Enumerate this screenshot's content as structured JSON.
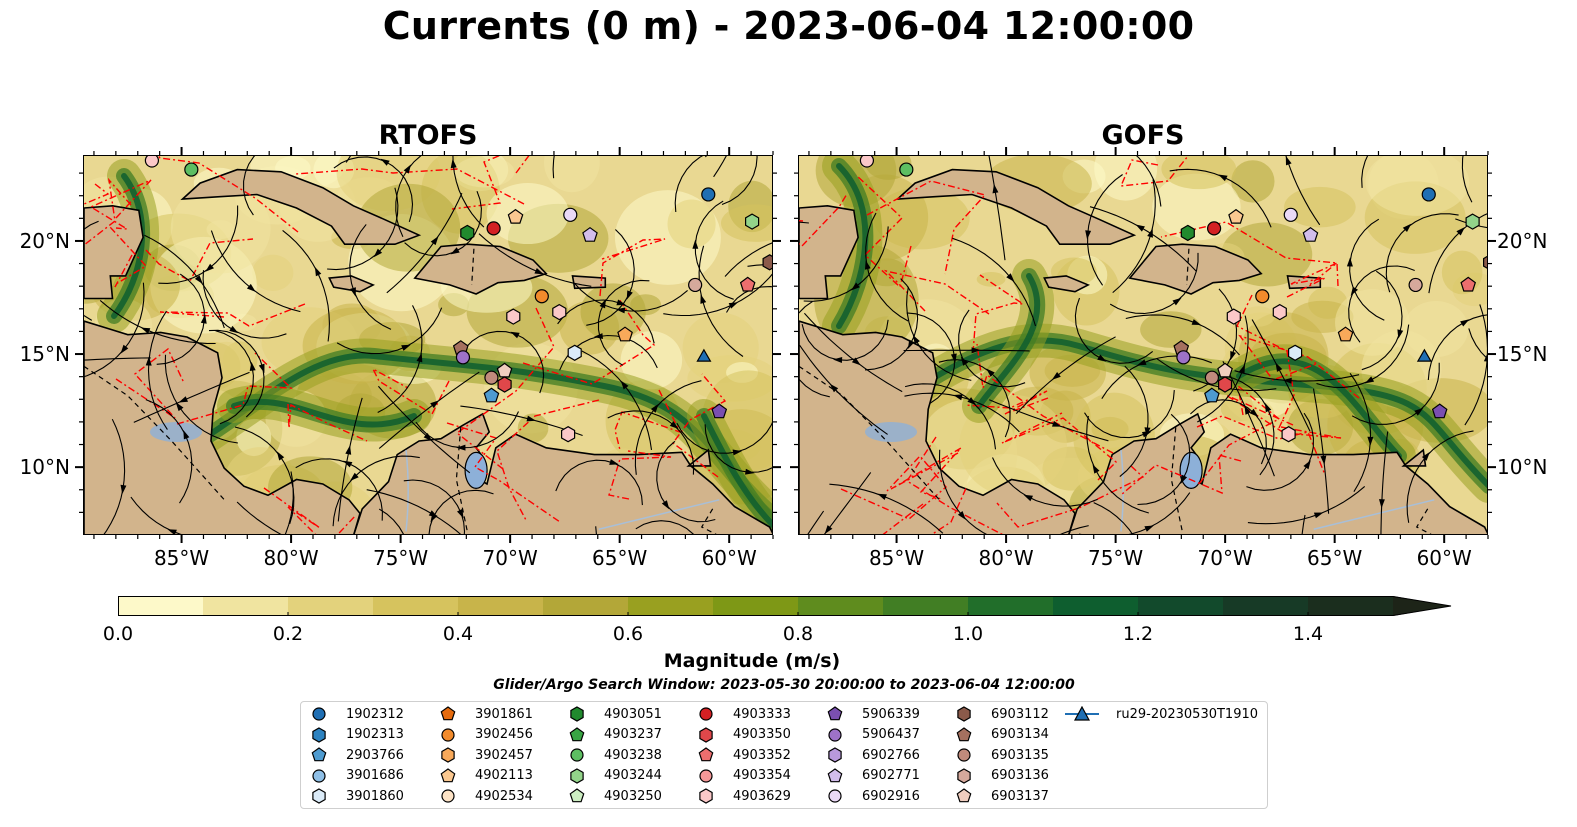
{
  "title": "Currents (0 m) - 2023-06-04 12:00:00",
  "panels": [
    {
      "title": "RTOFS"
    },
    {
      "title": "GOFS"
    }
  ],
  "x_ticks": [
    "85°W",
    "80°W",
    "75°W",
    "70°W",
    "65°W",
    "60°W"
  ],
  "y_ticks": [
    "20°N",
    "15°N",
    "10°N"
  ],
  "colorbar": {
    "label": "Magnitude (m/s)",
    "ticks": [
      "0.0",
      "0.2",
      "0.4",
      "0.6",
      "0.8",
      "1.0",
      "1.2",
      "1.4"
    ],
    "range": [
      0.0,
      1.5
    ],
    "extend": "max",
    "colors": [
      "#fdf9c9",
      "#f0e4a0",
      "#e3d27c",
      "#d6c35e",
      "#c8b44a",
      "#b3a738",
      "#99a020",
      "#7e9816",
      "#5f8c1e",
      "#417e24",
      "#216e2a",
      "#0e5e2f",
      "#124a2c",
      "#173a26",
      "#1b2e1e",
      "#1d2418"
    ]
  },
  "map_colors": {
    "land": "#d2b48c",
    "lake": "#8db0d8",
    "river": "#a8bfd8",
    "eez": "#ff0000"
  },
  "legend": {
    "title": "Glider/Argo Search Window: 2023-05-30 20:00:00 to 2023-06-04 12:00:00",
    "items": [
      {
        "label": "1902312",
        "marker": "circle",
        "color": "#1f6fb4"
      },
      {
        "label": "1902313",
        "marker": "hexagon",
        "color": "#2c82c0"
      },
      {
        "label": "2903766",
        "marker": "pentagon",
        "color": "#4e9bd0"
      },
      {
        "label": "3901686",
        "marker": "circle",
        "color": "#8fbfe6"
      },
      {
        "label": "3901860",
        "marker": "hexagon",
        "color": "#dbebf8"
      },
      {
        "label": "3901861",
        "marker": "pentagon",
        "color": "#e66b0e"
      },
      {
        "label": "3902456",
        "marker": "circle",
        "color": "#f28b2c"
      },
      {
        "label": "3902457",
        "marker": "hexagon",
        "color": "#f8a95a"
      },
      {
        "label": "4902113",
        "marker": "pentagon",
        "color": "#fbc890"
      },
      {
        "label": "4902534",
        "marker": "circle",
        "color": "#fde3c6"
      },
      {
        "label": "4903051",
        "marker": "hexagon",
        "color": "#218a2e"
      },
      {
        "label": "4903237",
        "marker": "pentagon",
        "color": "#38a544"
      },
      {
        "label": "4903238",
        "marker": "circle",
        "color": "#5dbe62"
      },
      {
        "label": "4903244",
        "marker": "hexagon",
        "color": "#93d48a"
      },
      {
        "label": "4903250",
        "marker": "pentagon",
        "color": "#cdeec2"
      },
      {
        "label": "4903333",
        "marker": "circle",
        "color": "#d42023"
      },
      {
        "label": "4903350",
        "marker": "hexagon",
        "color": "#e0474a"
      },
      {
        "label": "4903352",
        "marker": "pentagon",
        "color": "#ec6e6e"
      },
      {
        "label": "4903354",
        "marker": "circle",
        "color": "#f49898"
      },
      {
        "label": "4903629",
        "marker": "hexagon",
        "color": "#fbc8c8"
      },
      {
        "label": "5906339",
        "marker": "pentagon",
        "color": "#7a4fb0"
      },
      {
        "label": "5906437",
        "marker": "circle",
        "color": "#9d72c8"
      },
      {
        "label": "6902766",
        "marker": "hexagon",
        "color": "#b899dc"
      },
      {
        "label": "6902771",
        "marker": "pentagon",
        "color": "#d2bdeb"
      },
      {
        "label": "6902916",
        "marker": "circle",
        "color": "#ead9f6"
      },
      {
        "label": "6903112",
        "marker": "hexagon",
        "color": "#8b5a4a"
      },
      {
        "label": "6903134",
        "marker": "pentagon",
        "color": "#a5705f"
      },
      {
        "label": "6903135",
        "marker": "circle",
        "color": "#c08b7c"
      },
      {
        "label": "6903136",
        "marker": "hexagon",
        "color": "#d6a99c"
      },
      {
        "label": "6903137",
        "marker": "pentagon",
        "color": "#efcdbf"
      },
      {
        "label": "ru29-20230530T1910",
        "marker": "triangle-line",
        "color": "#1f6fb4"
      }
    ]
  }
}
